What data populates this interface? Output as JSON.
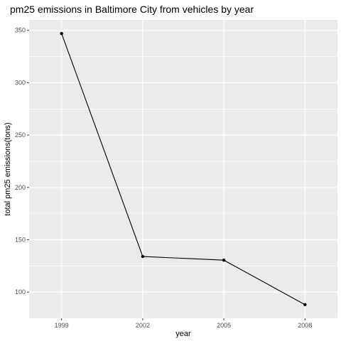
{
  "chart_data": {
    "type": "line",
    "title": "pm25 emissions in Baltimore City from vehicles by year",
    "xlabel": "year",
    "ylabel": "total pm25 emissions(tons)",
    "x": [
      1999,
      2002,
      2005,
      2008
    ],
    "y": [
      347,
      134,
      130.5,
      88
    ],
    "x_ticks": [
      "1999",
      "2002",
      "2005",
      "2008"
    ],
    "y_ticks": [
      100,
      150,
      200,
      250,
      300,
      350
    ],
    "y_tick_labels": [
      "100",
      "150",
      "200",
      "250",
      "300",
      "350"
    ],
    "xlim": [
      1997.8,
      2009.2
    ],
    "ylim": [
      75,
      360
    ],
    "grid": true,
    "legend": "none",
    "colors": {
      "panel": "#ebebeb",
      "grid": "#ffffff",
      "line": "#000000",
      "point": "#000000"
    }
  }
}
